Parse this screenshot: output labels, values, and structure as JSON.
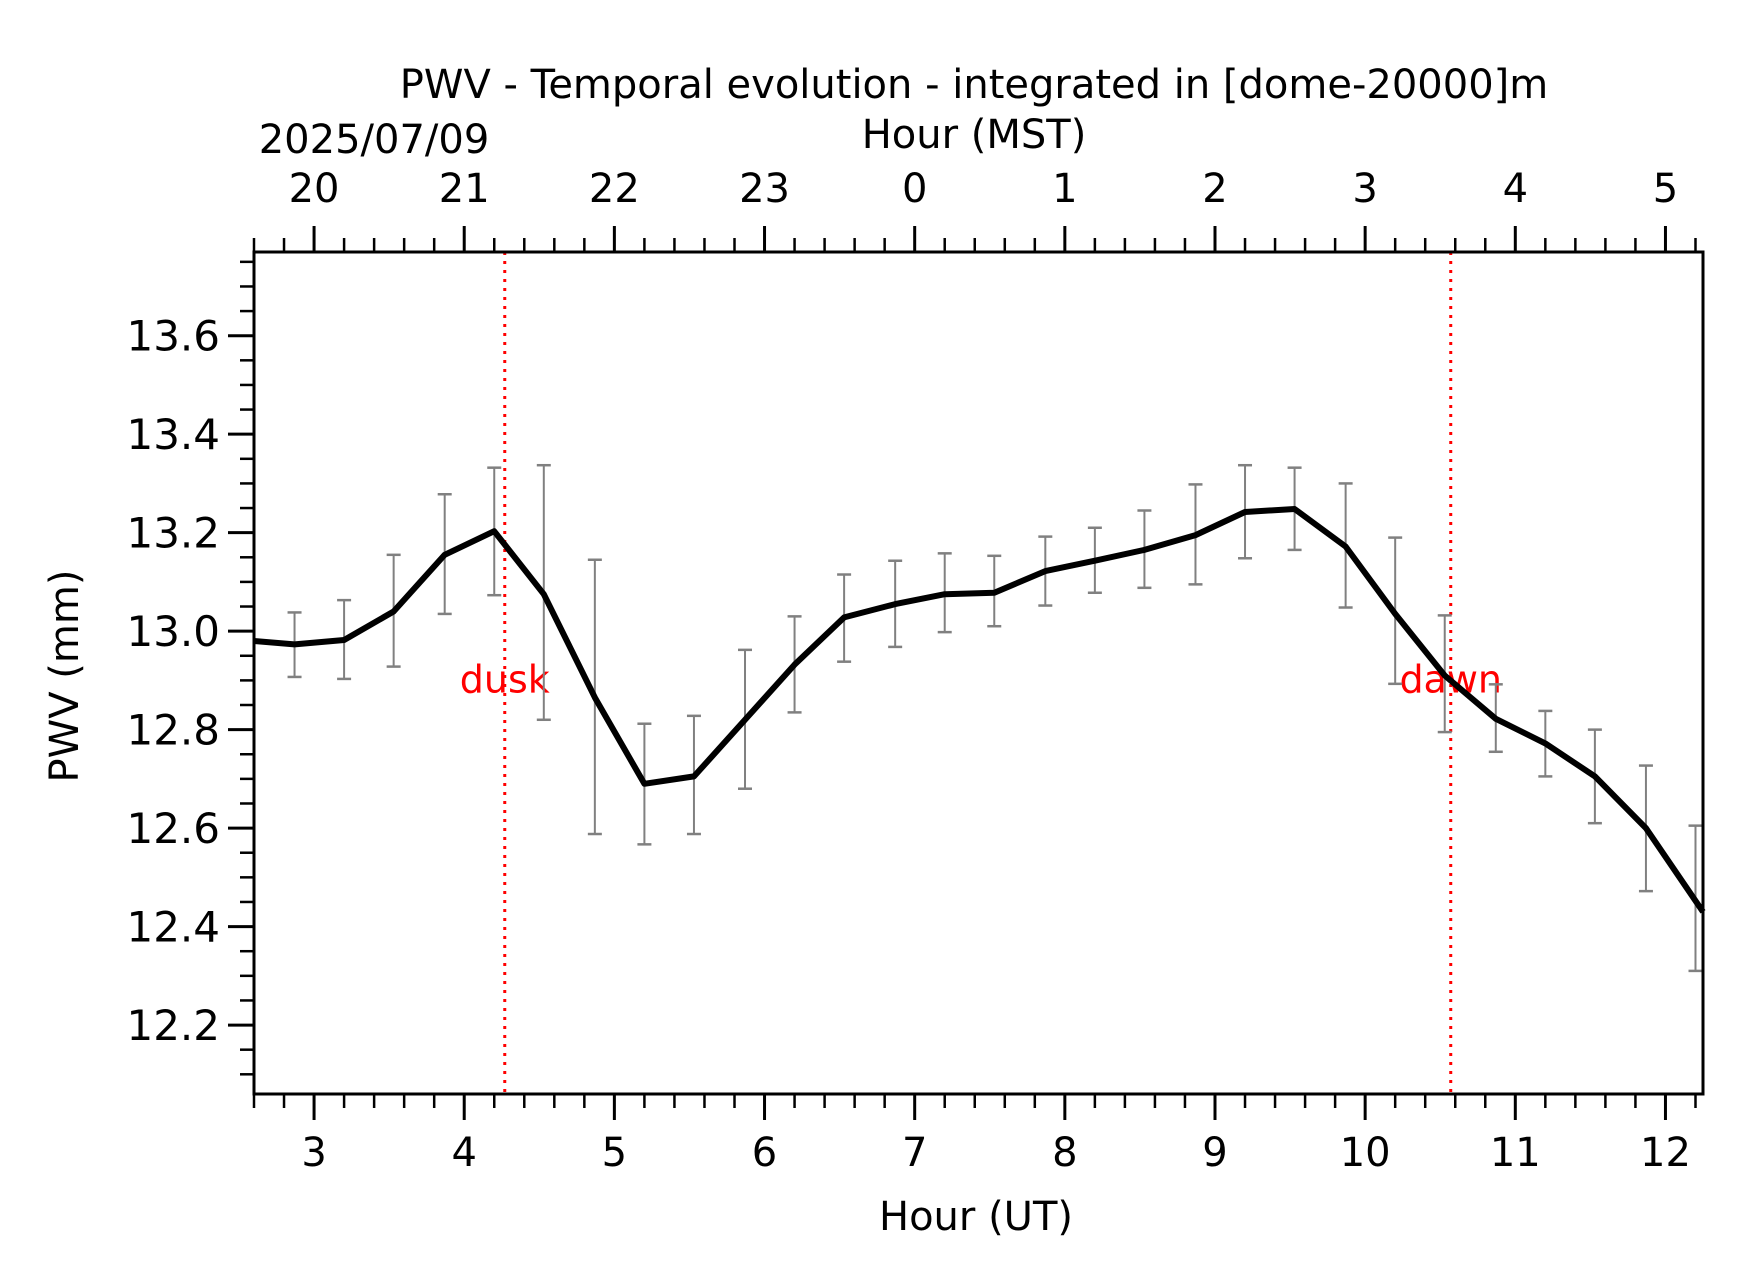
{
  "chart_data": {
    "type": "line",
    "title": "PWV - Temporal evolution - integrated in [dome-20000]m",
    "date_label": "2025/07/09",
    "xlabel": "Hour (UT)",
    "x2label": "Hour (MST)",
    "ylabel": "PWV (mm)",
    "xlim": [
      2.6,
      12.25
    ],
    "ylim": [
      12.06,
      13.77
    ],
    "x_ticks": [
      3,
      4,
      5,
      6,
      7,
      8,
      9,
      10,
      11,
      12
    ],
    "x_tick_labels": [
      "3",
      "4",
      "5",
      "6",
      "7",
      "8",
      "9",
      "10",
      "11",
      "12"
    ],
    "x_minor_step": 0.2,
    "x2_offset_hours": -7,
    "x2_ticks": [
      3,
      4,
      5,
      6,
      7,
      8,
      9,
      10,
      11,
      12
    ],
    "x2_tick_labels": [
      "20",
      "21",
      "22",
      "23",
      "0",
      "1",
      "2",
      "3",
      "4",
      "5"
    ],
    "y_ticks": [
      12.2,
      12.4,
      12.6,
      12.8,
      13.0,
      13.2,
      13.4,
      13.6
    ],
    "y_tick_labels": [
      "12.2",
      "12.4",
      "12.6",
      "12.8",
      "13.0",
      "13.2",
      "13.4",
      "13.6"
    ],
    "y_minor_step": 0.05,
    "series": [
      {
        "name": "PWV",
        "color": "#000000",
        "errorbar_color": "#808080",
        "x": [
          2.6,
          2.87,
          3.2,
          3.53,
          3.87,
          4.2,
          4.53,
          4.87,
          5.2,
          5.53,
          5.87,
          6.2,
          6.53,
          6.87,
          7.2,
          7.53,
          7.87,
          8.2,
          8.53,
          8.87,
          9.2,
          9.53,
          9.87,
          10.2,
          10.53,
          10.87,
          11.2,
          11.53,
          11.87,
          12.25
        ],
        "y": [
          12.98,
          12.973,
          12.982,
          13.04,
          13.155,
          13.203,
          13.075,
          12.865,
          12.69,
          12.705,
          12.82,
          12.932,
          13.028,
          13.055,
          13.075,
          13.078,
          13.122,
          13.143,
          13.165,
          13.195,
          13.242,
          13.248,
          13.172,
          13.035,
          12.91,
          12.822,
          12.772,
          12.705,
          12.6,
          12.43
        ],
        "err_x": [
          2.87,
          3.2,
          3.53,
          3.87,
          4.2,
          4.53,
          4.87,
          5.2,
          5.53,
          5.87,
          6.2,
          6.53,
          6.87,
          7.2,
          7.53,
          7.87,
          8.2,
          8.53,
          8.87,
          9.2,
          9.53,
          9.87,
          10.2,
          10.53,
          10.87,
          11.2,
          11.53,
          11.87,
          12.2
        ],
        "err_low": [
          12.907,
          12.903,
          12.928,
          13.035,
          13.073,
          12.82,
          12.588,
          12.567,
          12.588,
          12.68,
          12.835,
          12.938,
          12.968,
          12.998,
          13.01,
          13.052,
          13.078,
          13.088,
          13.095,
          13.148,
          13.165,
          13.048,
          12.893,
          12.795,
          12.755,
          12.705,
          12.61,
          12.472,
          12.31
        ],
        "err_high": [
          13.038,
          13.063,
          13.155,
          13.278,
          13.332,
          13.337,
          13.145,
          12.812,
          12.828,
          12.962,
          13.03,
          13.115,
          13.143,
          13.158,
          13.153,
          13.192,
          13.21,
          13.245,
          13.298,
          13.337,
          13.332,
          13.3,
          13.19,
          13.032,
          12.892,
          12.838,
          12.8,
          12.727,
          12.605
        ]
      }
    ],
    "vlines": [
      {
        "x": 4.27,
        "label": "dusk",
        "color": "#ff0000",
        "style": "dotted"
      },
      {
        "x": 10.57,
        "label": "dawn",
        "color": "#ff0000",
        "style": "dotted"
      }
    ],
    "grid": false
  }
}
